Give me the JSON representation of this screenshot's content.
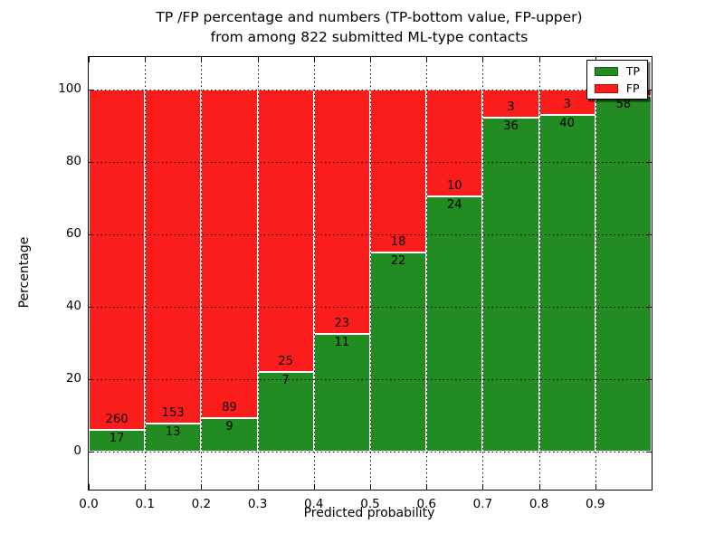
{
  "figure": {
    "title_line1": "TP /FP percentage and numbers (TP-bottom value, FP-upper)",
    "title_line2": "from among 822 submitted ML-type contacts"
  },
  "chart_data": {
    "type": "bar",
    "stacked": true,
    "title": "TP /FP percentage and numbers (TP-bottom value, FP-upper)\nfrom among 822 submitted ML-type contacts",
    "xlabel": "Predicted probability",
    "ylabel": "Percentage",
    "xlim": [
      0.0,
      1.0
    ],
    "ylim": [
      -10.5,
      109
    ],
    "x_tick_labels": [
      "0.0",
      "0.1",
      "0.2",
      "0.3",
      "0.4",
      "0.5",
      "0.6",
      "0.7",
      "0.8",
      "0.9"
    ],
    "y_ticks": [
      0,
      20,
      40,
      60,
      80,
      100
    ],
    "grid": true,
    "grid_style": "dotted",
    "colors": {
      "tp": "#228B22",
      "fp": "#FB1C1C"
    },
    "legend": {
      "position": "upper right",
      "entries": [
        {
          "label": "TP",
          "color": "#228B22"
        },
        {
          "label": "FP",
          "color": "#FB1C1C"
        }
      ]
    },
    "bins": [
      {
        "range": "0.0-0.1",
        "tp": 17,
        "fp": 260,
        "tp_pct": 6.1
      },
      {
        "range": "0.1-0.2",
        "tp": 13,
        "fp": 153,
        "tp_pct": 7.8
      },
      {
        "range": "0.2-0.3",
        "tp": 9,
        "fp": 89,
        "tp_pct": 9.2
      },
      {
        "range": "0.3-0.4",
        "tp": 7,
        "fp": 25,
        "tp_pct": 21.9
      },
      {
        "range": "0.4-0.5",
        "tp": 11,
        "fp": 23,
        "tp_pct": 32.4
      },
      {
        "range": "0.5-0.6",
        "tp": 22,
        "fp": 18,
        "tp_pct": 55.0
      },
      {
        "range": "0.6-0.7",
        "tp": 24,
        "fp": 10,
        "tp_pct": 70.6
      },
      {
        "range": "0.7-0.8",
        "tp": 36,
        "fp": 3,
        "tp_pct": 92.3
      },
      {
        "range": "0.8-0.9",
        "tp": 40,
        "fp": 3,
        "tp_pct": 93.0
      },
      {
        "range": "0.9-1.0",
        "tp": 58,
        "fp": null,
        "tp_pct": 98.3
      }
    ]
  }
}
